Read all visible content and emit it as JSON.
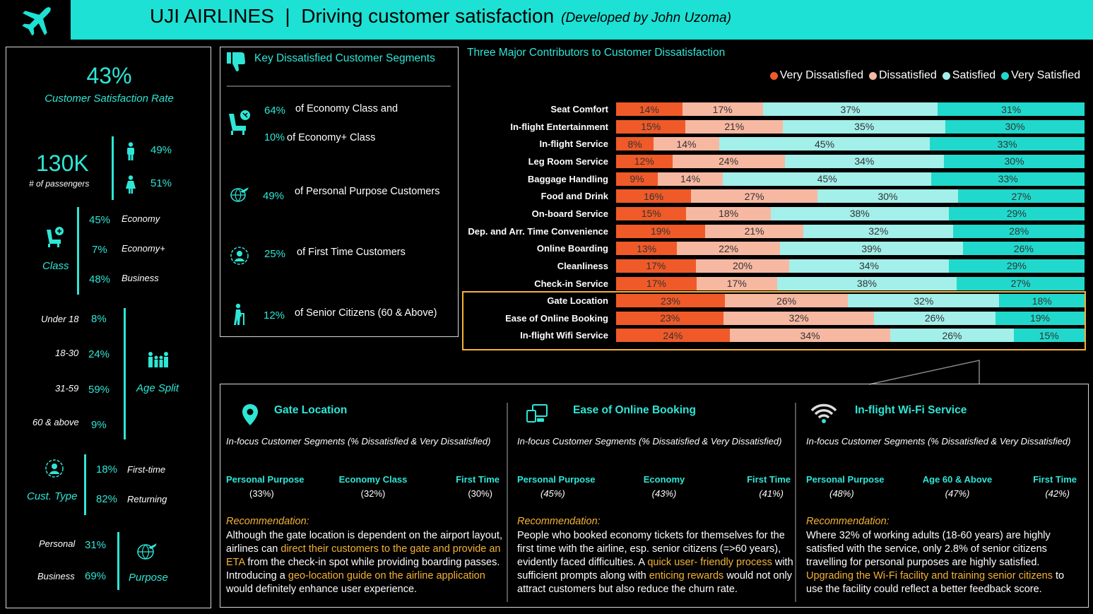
{
  "header": {
    "title": "UJI AIRLINES  |  Driving customer satisfaction",
    "subtitle": "(Developed by John Uzoma)",
    "logo_icon": "airplane-icon",
    "bg_color": "#1de1d4"
  },
  "left_panel": {
    "satisfaction_rate": "43%",
    "satisfaction_label": "Customer Satisfaction Rate",
    "passengers_value": "130K",
    "passengers_label": "# of passengers",
    "male_pct": "49%",
    "female_pct": "51%",
    "class_label": "Class",
    "class_items": [
      {
        "pct": "45%",
        "name": "Economy"
      },
      {
        "pct": "7%",
        "name": "Economy+"
      },
      {
        "pct": "48%",
        "name": "Business"
      }
    ],
    "age_label": "Age Split",
    "age_items": [
      {
        "name": "Under 18",
        "pct": "8%"
      },
      {
        "name": "18-30",
        "pct": "24%"
      },
      {
        "name": "31-59",
        "pct": "59%"
      },
      {
        "name": "60 & above",
        "pct": "9%"
      }
    ],
    "cust_type_label": "Cust. Type",
    "cust_type_items": [
      {
        "pct": "18%",
        "name": "First-time"
      },
      {
        "pct": "82%",
        "name": "Returning"
      }
    ],
    "purpose_label": "Purpose",
    "purpose_items": [
      {
        "name": "Personal",
        "pct": "31%"
      },
      {
        "name": "Business",
        "pct": "69%"
      }
    ]
  },
  "segments_panel": {
    "title": "Key Dissatisfied Customer Segments",
    "items": [
      {
        "pct": "64%",
        "text": "of Economy Class and"
      },
      {
        "pct": "10%",
        "text": "of Economy+ Class"
      },
      {
        "pct": "49%",
        "text": "of Personal Purpose Customers"
      },
      {
        "pct": "25%",
        "text": "of First Time Customers"
      },
      {
        "pct": "12%",
        "text": "of Senior Citizens (60 & Above)"
      }
    ]
  },
  "chart_title": "Three Major Contributors to Customer Dissatisfaction",
  "chart_data": {
    "type": "bar",
    "orientation": "horizontal-stacked-100",
    "categories": [
      "Seat Comfort",
      "In-flight Entertainment",
      "In-flight Service",
      "Leg Room Service",
      "Baggage Handling",
      "Food and Drink",
      "On-board Service",
      "Dep. and Arr. Time Convenience",
      "Online Boarding",
      "Cleanliness",
      "Check-in Service",
      "Gate Location",
      "Ease of Online Booking",
      "In-flight Wifi Service"
    ],
    "series": [
      {
        "name": "Very Dissatisfied",
        "color": "#f05a28",
        "values": [
          14,
          15,
          8,
          12,
          9,
          16,
          15,
          19,
          13,
          17,
          17,
          23,
          23,
          24
        ]
      },
      {
        "name": "Dissatisfied",
        "color": "#f7b8a2",
        "values": [
          17,
          21,
          14,
          24,
          14,
          27,
          18,
          21,
          22,
          20,
          17,
          26,
          32,
          34
        ]
      },
      {
        "name": "Satisfied",
        "color": "#a3efea",
        "values": [
          37,
          35,
          45,
          34,
          45,
          30,
          38,
          32,
          39,
          34,
          38,
          32,
          26,
          26
        ]
      },
      {
        "name": "Very Satisfied",
        "color": "#20d9cc",
        "values": [
          31,
          30,
          33,
          30,
          33,
          27,
          29,
          28,
          26,
          29,
          27,
          18,
          19,
          15
        ]
      }
    ],
    "value_labels": [
      [
        "14%",
        "17%",
        "37%",
        "31%"
      ],
      [
        "15%",
        "21%",
        "35%",
        "30%"
      ],
      [
        "8%",
        "14%",
        "45%",
        "33%"
      ],
      [
        "12%",
        "24%",
        "34%",
        "30%"
      ],
      [
        "9%",
        "14%",
        "45%",
        "33%"
      ],
      [
        "16%",
        "27%",
        "30%",
        "27%"
      ],
      [
        "15%",
        "18%",
        "38%",
        "29%"
      ],
      [
        "19%",
        "21%",
        "32%",
        "28%"
      ],
      [
        "13%",
        "22%",
        "39%",
        "26%"
      ],
      [
        "17%",
        "20%",
        "34%",
        "29%"
      ],
      [
        "17%",
        "17%",
        "38%",
        "27%"
      ],
      [
        "23%",
        "26%",
        "32%",
        "18%"
      ],
      [
        "23%",
        "32%",
        "26%",
        "19%"
      ],
      [
        "24%",
        "34%",
        "26%",
        "15%"
      ]
    ],
    "highlighted_categories": [
      "Gate Location",
      "Ease of Online Booking",
      "In-flight Wifi Service"
    ],
    "highlight_color": "#f5b335",
    "legend_position": "top-right",
    "grid": false
  },
  "bottom_panel": {
    "columns": [
      {
        "title": "Gate Location",
        "icon": "location-pin-icon",
        "subtitle": "In-focus Customer Segments (% Dissatisfied & Very Dissatisfied)",
        "segments": [
          {
            "name": "Personal Purpose",
            "pct": "(33%)"
          },
          {
            "name": "Economy Class",
            "pct": "(32%)"
          },
          {
            "name": "First Time",
            "pct": "(30%)"
          }
        ],
        "rec_label": "Recommendation:",
        "rec_parts": [
          {
            "t": "Although the gate location is dependent on the airport layout, airlines can ",
            "hl": false
          },
          {
            "t": "direct their customers to the gate and provide an ETA",
            "hl": true
          },
          {
            "t": " from the check-in spot while providing boarding passes. Introducing a ",
            "hl": false
          },
          {
            "t": "geo-location guide on the airline application",
            "hl": true
          },
          {
            "t": " would definitely enhance user experience.",
            "hl": false
          }
        ]
      },
      {
        "title": "Ease of Online Booking",
        "icon": "devices-icon",
        "subtitle": "In-focus Customer Segments (% Dissatisfied & Very Dissatisfied)",
        "segments": [
          {
            "name": "Personal Purpose",
            "pct": "(45%)"
          },
          {
            "name": "Economy",
            "pct": "(43%)"
          },
          {
            "name": "First Time",
            "pct": "(41%)"
          }
        ],
        "rec_label": "Recommendation:",
        "rec_parts": [
          {
            "t": "People who booked economy tickets for themselves for the first time with the airline, esp. senior citizens (=>60 years), evidently faced difficulties. A ",
            "hl": false
          },
          {
            "t": "quick user- friendly process",
            "hl": true
          },
          {
            "t": " with sufficient prompts along with ",
            "hl": false
          },
          {
            "t": "enticing rewards",
            "hl": true
          },
          {
            "t": " would not only attract customers but also reduce the churn rate.",
            "hl": false
          }
        ]
      },
      {
        "title": "In-flight Wi-Fi Service",
        "icon": "wifi-icon",
        "subtitle": "In-focus Customer Segments (% Dissatisfied & Very Dissatisfied)",
        "segments": [
          {
            "name": "Personal Purpose",
            "pct": "(48%)"
          },
          {
            "name": "Age 60 & Above",
            "pct": "(47%)"
          },
          {
            "name": "First Time",
            "pct": "(42%)"
          }
        ],
        "rec_label": "Recommendation:",
        "rec_parts": [
          {
            "t": "Where 32% of working adults (18-60 years) are highly satisfied with the service, only 2.8% of senior citizens travelling for personal purposes are highly satisfied. ",
            "hl": false
          },
          {
            "t": "Upgrading the Wi-Fi facility and training senior citizens",
            "hl": true
          },
          {
            "t": " to use the facility could reflect a better feedback score.",
            "hl": false
          }
        ]
      }
    ]
  }
}
